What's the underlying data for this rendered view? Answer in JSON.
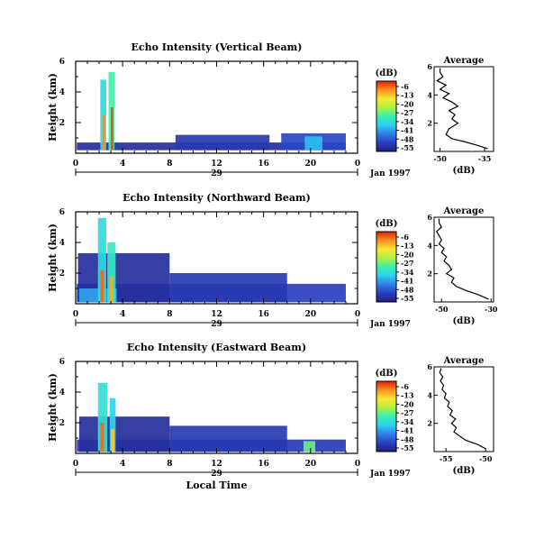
{
  "chart_data": [
    {
      "type": "heatmap",
      "title": "Echo Intensity (Vertical Beam)",
      "ylabel": "Height (km)",
      "xlabel": "",
      "x_ticks": [
        "0",
        "4",
        "8",
        "12",
        "16",
        "20",
        "0"
      ],
      "y_ticks": [
        "6",
        "4",
        "2"
      ],
      "xlim": [
        0,
        24
      ],
      "ylim": [
        0,
        6
      ],
      "date_tick": "29",
      "date_label": "Jan 1997",
      "colorbar": {
        "unit": "(dB)",
        "ticks": [
          "-6",
          "-13",
          "-20",
          "-27",
          "-34",
          "-41",
          "-48",
          "-55"
        ],
        "range": [
          -55,
          -6
        ]
      },
      "echo_regions": [
        {
          "t0": 0.1,
          "t1": 23.0,
          "h0": 0.2,
          "h1": 0.7,
          "db": -52
        },
        {
          "t0": 8.5,
          "t1": 16.5,
          "h0": 0.2,
          "h1": 1.2,
          "db": -50
        },
        {
          "t0": 17.5,
          "t1": 23.0,
          "h0": 0.2,
          "h1": 1.3,
          "db": -48
        },
        {
          "t0": 2.1,
          "t1": 2.6,
          "h0": 0.2,
          "h1": 4.8,
          "db": -35
        },
        {
          "t0": 2.8,
          "t1": 3.3,
          "h0": 0.2,
          "h1": 5.3,
          "db": -30
        },
        {
          "t0": 2.3,
          "t1": 2.5,
          "h0": 0.2,
          "h1": 2.5,
          "db": -12
        },
        {
          "t0": 3.0,
          "t1": 3.2,
          "h0": 0.2,
          "h1": 3.0,
          "db": -8
        },
        {
          "t0": 19.5,
          "t1": 21.0,
          "h0": 0.2,
          "h1": 1.1,
          "db": -38
        }
      ],
      "average": {
        "title": "Average",
        "xlabel": "(dB)",
        "x_ticks": [
          "-50",
          "-35"
        ],
        "xlim": [
          -52,
          -32
        ],
        "y_ticks": [
          "6",
          "4",
          "2"
        ],
        "ylim": [
          0,
          6
        ],
        "x": [
          -34,
          -37,
          -42,
          -46,
          -48,
          -47,
          -44,
          -46,
          -45,
          -47,
          -44,
          -46,
          -49,
          -47,
          -50,
          -48,
          -51,
          -49,
          -50,
          -50
        ],
        "y": [
          0.2,
          0.4,
          0.7,
          0.9,
          1.2,
          1.6,
          2.0,
          2.3,
          2.6,
          2.9,
          3.2,
          3.5,
          3.8,
          4.1,
          4.4,
          4.7,
          5.0,
          5.3,
          5.6,
          5.9
        ]
      }
    },
    {
      "type": "heatmap",
      "title": "Echo Intensity (Northward Beam)",
      "ylabel": "Height (km)",
      "xlabel": "",
      "x_ticks": [
        "0",
        "4",
        "8",
        "12",
        "16",
        "20",
        "0"
      ],
      "y_ticks": [
        "6",
        "4",
        "2"
      ],
      "xlim": [
        0,
        24
      ],
      "ylim": [
        0,
        6
      ],
      "date_tick": "29",
      "date_label": "Jan 1997",
      "colorbar": {
        "unit": "(dB)",
        "ticks": [
          "-6",
          "-13",
          "-20",
          "-27",
          "-34",
          "-41",
          "-48",
          "-55"
        ],
        "range": [
          -55,
          -6
        ]
      },
      "echo_regions": [
        {
          "t0": 0.1,
          "t1": 23.0,
          "h0": 0.1,
          "h1": 1.3,
          "db": -49
        },
        {
          "t0": 0.2,
          "t1": 8.0,
          "h0": 0.1,
          "h1": 3.3,
          "db": -52
        },
        {
          "t0": 8.0,
          "t1": 18.0,
          "h0": 0.1,
          "h1": 2.0,
          "db": -50
        },
        {
          "t0": 0.3,
          "t1": 3.5,
          "h0": 0.1,
          "h1": 1.0,
          "db": -40
        },
        {
          "t0": 1.9,
          "t1": 2.6,
          "h0": 0.1,
          "h1": 5.6,
          "db": -35
        },
        {
          "t0": 2.7,
          "t1": 3.4,
          "h0": 0.1,
          "h1": 4.0,
          "db": -32
        },
        {
          "t0": 2.1,
          "t1": 2.4,
          "h0": 0.1,
          "h1": 2.2,
          "db": -10
        },
        {
          "t0": 2.9,
          "t1": 3.2,
          "h0": 0.1,
          "h1": 1.8,
          "db": -14
        }
      ],
      "average": {
        "title": "Average",
        "xlabel": "(dB)",
        "x_ticks": [
          "-50",
          "-30"
        ],
        "xlim": [
          -53,
          -29
        ],
        "y_ticks": [
          "6",
          "4",
          "2"
        ],
        "ylim": [
          0,
          6
        ],
        "x": [
          -31,
          -35,
          -40,
          -44,
          -46,
          -45,
          -48,
          -46,
          -47,
          -49,
          -48,
          -50,
          -49,
          -51,
          -50,
          -51,
          -52,
          -50,
          -51,
          -51
        ],
        "y": [
          0.2,
          0.5,
          0.8,
          1.1,
          1.4,
          1.7,
          2.0,
          2.3,
          2.6,
          2.9,
          3.2,
          3.5,
          3.8,
          4.1,
          4.4,
          4.7,
          5.0,
          5.3,
          5.6,
          5.9
        ]
      }
    },
    {
      "type": "heatmap",
      "title": "Echo Intensity (Eastward Beam)",
      "ylabel": "Height (km)",
      "xlabel": "Local Time",
      "x_ticks": [
        "0",
        "4",
        "8",
        "12",
        "16",
        "20",
        "0"
      ],
      "y_ticks": [
        "6",
        "4",
        "2"
      ],
      "xlim": [
        0,
        24
      ],
      "ylim": [
        0,
        6
      ],
      "date_tick": "29",
      "date_label": "Jan 1997",
      "colorbar": {
        "unit": "(dB)",
        "ticks": [
          "-6",
          "-13",
          "-20",
          "-27",
          "-34",
          "-41",
          "-48",
          "-55"
        ],
        "range": [
          -55,
          -6
        ]
      },
      "echo_regions": [
        {
          "t0": 0.1,
          "t1": 23.0,
          "h0": 0.1,
          "h1": 0.9,
          "db": -50
        },
        {
          "t0": 8.0,
          "t1": 18.0,
          "h0": 0.1,
          "h1": 1.8,
          "db": -50
        },
        {
          "t0": 0.3,
          "t1": 8.0,
          "h0": 0.1,
          "h1": 2.4,
          "db": -52
        },
        {
          "t0": 1.9,
          "t1": 2.7,
          "h0": 0.1,
          "h1": 4.6,
          "db": -34
        },
        {
          "t0": 2.9,
          "t1": 3.4,
          "h0": 0.1,
          "h1": 3.6,
          "db": -36
        },
        {
          "t0": 2.1,
          "t1": 2.4,
          "h0": 0.1,
          "h1": 2.0,
          "db": -10
        },
        {
          "t0": 3.0,
          "t1": 3.3,
          "h0": 0.1,
          "h1": 1.6,
          "db": -16
        },
        {
          "t0": 19.4,
          "t1": 20.4,
          "h0": 0.1,
          "h1": 0.8,
          "db": -28
        }
      ],
      "average": {
        "title": "Average",
        "xlabel": "(dB)",
        "x_ticks": [
          "-55",
          "-50"
        ],
        "xlim": [
          -56.5,
          -49
        ],
        "y_ticks": [
          "6",
          "4",
          "2"
        ],
        "ylim": [
          0,
          6
        ],
        "x": [
          -50,
          -51,
          -52.5,
          -53.3,
          -54,
          -53.7,
          -54.3,
          -53.8,
          -54.5,
          -54.2,
          -54.8,
          -54.6,
          -55.2,
          -55,
          -55.5,
          -55.3,
          -55.7,
          -55.4,
          -55.8,
          -55.6
        ],
        "y": [
          0.2,
          0.5,
          0.8,
          1.1,
          1.4,
          1.7,
          2.0,
          2.3,
          2.6,
          2.9,
          3.2,
          3.5,
          3.8,
          4.1,
          4.4,
          4.7,
          5.0,
          5.3,
          5.6,
          5.9
        ]
      }
    }
  ]
}
